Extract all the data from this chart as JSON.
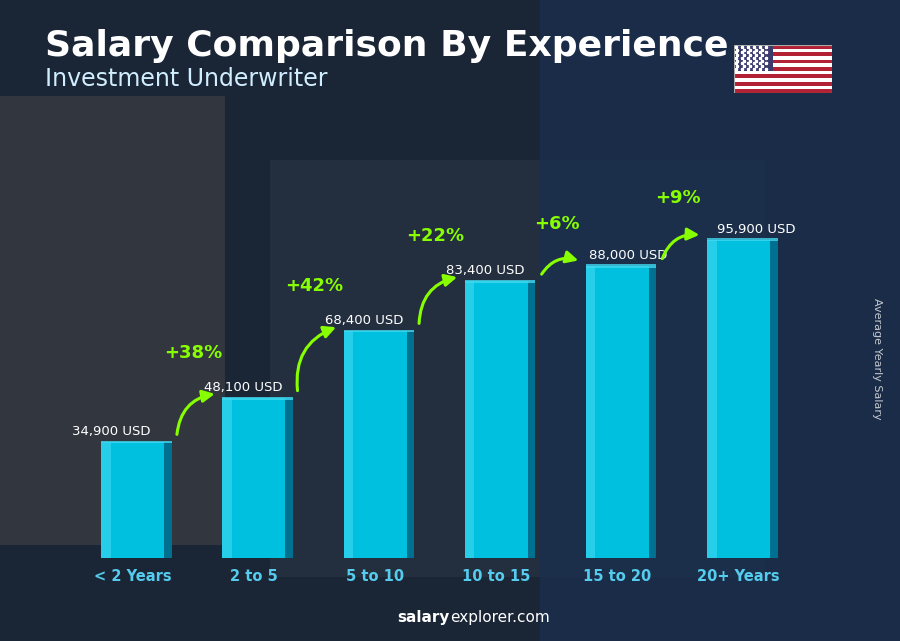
{
  "title": "Salary Comparison By Experience",
  "subtitle": "Investment Underwriter",
  "categories": [
    "< 2 Years",
    "2 to 5",
    "5 to 10",
    "10 to 15",
    "15 to 20",
    "20+ Years"
  ],
  "values": [
    34900,
    48100,
    68400,
    83400,
    88000,
    95900
  ],
  "labels": [
    "34,900 USD",
    "48,100 USD",
    "68,400 USD",
    "83,400 USD",
    "88,000 USD",
    "95,900 USD"
  ],
  "pct_labels": [
    "+38%",
    "+42%",
    "+22%",
    "+6%",
    "+9%"
  ],
  "bar_color_main": "#00c0e0",
  "bar_color_light": "#40d8f0",
  "bar_color_dark": "#0090b0",
  "bar_color_right": "#007090",
  "title_color": "#ffffff",
  "subtitle_color": "#d0eeff",
  "label_color": "#ffffff",
  "pct_color": "#88ff00",
  "xtick_color": "#55ccee",
  "ylabel": "Average Yearly Salary",
  "footer_bold": "salary",
  "footer_normal": "explorer.com",
  "ylim": [
    0,
    120000
  ],
  "title_fontsize": 26,
  "subtitle_fontsize": 17,
  "bar_width": 0.52,
  "bg_color": "#1a2535"
}
